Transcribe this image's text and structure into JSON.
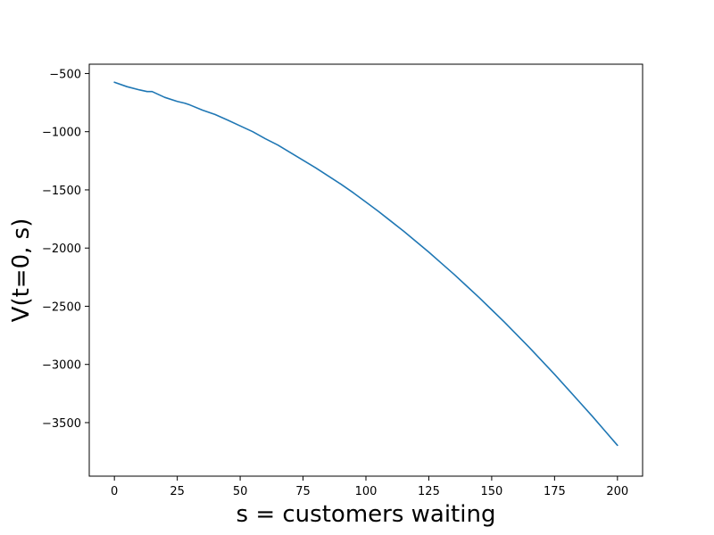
{
  "chart_data": {
    "type": "line",
    "title": "",
    "xlabel": "s = customers waiting",
    "ylabel": "V(t=0, s)",
    "xlim": [
      -10,
      210
    ],
    "ylim": [
      -3960,
      -420
    ],
    "xticks": [
      0,
      25,
      50,
      75,
      100,
      125,
      150,
      175,
      200
    ],
    "xtick_labels": [
      "0",
      "25",
      "50",
      "75",
      "100",
      "125",
      "150",
      "175",
      "200"
    ],
    "yticks": [
      -500,
      -1000,
      -1500,
      -2000,
      -2500,
      -3000,
      -3500
    ],
    "ytick_labels": [
      "−500",
      "−1000",
      "−1500",
      "−2000",
      "−2500",
      "−3000",
      "−3500"
    ],
    "grid": false,
    "legend": "none",
    "series": [
      {
        "color": "#1f77b4",
        "x": [
          0,
          5,
          10,
          13,
          15,
          20,
          25,
          28,
          30,
          35,
          40,
          45,
          50,
          55,
          60,
          65,
          70,
          75,
          80,
          85,
          90,
          95,
          100,
          105,
          110,
          115,
          120,
          125,
          130,
          135,
          140,
          145,
          150,
          155,
          160,
          165,
          170,
          175,
          180,
          185,
          190,
          195,
          200
        ],
        "y": [
          -575,
          -613,
          -641,
          -655,
          -655,
          -705,
          -740,
          -755,
          -770,
          -815,
          -852,
          -900,
          -950,
          -1000,
          -1060,
          -1115,
          -1180,
          -1245,
          -1310,
          -1380,
          -1450,
          -1525,
          -1605,
          -1685,
          -1770,
          -1855,
          -1945,
          -2035,
          -2130,
          -2225,
          -2325,
          -2425,
          -2530,
          -2635,
          -2745,
          -2855,
          -2970,
          -3085,
          -3205,
          -3325,
          -3445,
          -3570,
          -3695
        ]
      }
    ]
  }
}
